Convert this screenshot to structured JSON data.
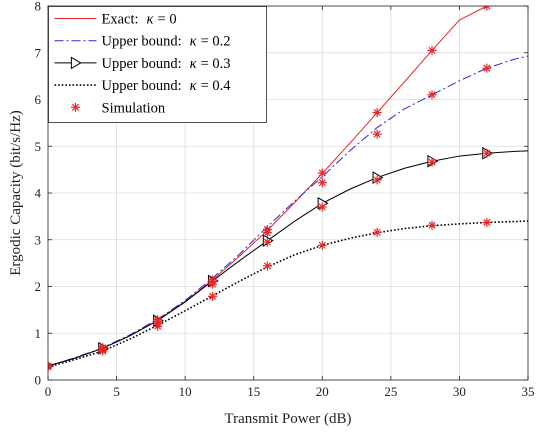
{
  "chart_data": {
    "type": "line",
    "xlabel": "Transmit Power  (dB)",
    "ylabel": "Ergodic Capacity (bit/s/Hz)",
    "xlim": [
      0,
      35
    ],
    "ylim": [
      0,
      8
    ],
    "xticks": [
      0,
      5,
      10,
      15,
      20,
      25,
      30,
      35
    ],
    "yticks": [
      0,
      1,
      2,
      3,
      4,
      5,
      6,
      7,
      8
    ],
    "grid": true,
    "legend_position": "top-left",
    "series": [
      {
        "name": "Exact:",
        "kappa_symbol": "κ",
        "kappa_value": "= 0",
        "color": "#e8262a",
        "style": "solid",
        "marker": "none",
        "x": [
          0,
          2,
          4,
          6,
          8,
          10,
          12,
          14,
          16,
          18,
          20,
          22,
          24,
          26,
          28,
          30,
          32
        ],
        "y": [
          0.3,
          0.47,
          0.68,
          0.95,
          1.28,
          1.68,
          2.14,
          2.66,
          3.2,
          3.8,
          4.42,
          5.06,
          5.72,
          6.38,
          7.05,
          7.7,
          8.0
        ]
      },
      {
        "name": "Upper bound:",
        "kappa_symbol": "κ",
        "kappa_value": "= 0.2",
        "color": "#2a2ad8",
        "style": "dashdot",
        "marker": "none",
        "x": [
          0,
          2,
          4,
          6,
          8,
          10,
          12,
          14,
          16,
          18,
          20,
          22,
          24,
          26,
          28,
          30,
          32,
          34,
          35
        ],
        "y": [
          0.3,
          0.48,
          0.69,
          0.97,
          1.3,
          1.7,
          2.18,
          2.7,
          3.28,
          3.83,
          4.35,
          4.9,
          5.4,
          5.8,
          6.1,
          6.4,
          6.67,
          6.86,
          6.93
        ]
      },
      {
        "name": "Upper bound:",
        "kappa_symbol": "κ",
        "kappa_value": "= 0.3",
        "color": "#000000",
        "style": "solid",
        "marker": "triangle-right",
        "marker_x": [
          0,
          4,
          8,
          12,
          16,
          20,
          24,
          28,
          32
        ],
        "x": [
          0,
          2,
          4,
          6,
          8,
          10,
          12,
          14,
          16,
          18,
          20,
          22,
          24,
          26,
          28,
          30,
          32,
          34,
          35
        ],
        "y": [
          0.3,
          0.47,
          0.68,
          0.95,
          1.27,
          1.67,
          2.12,
          2.56,
          2.98,
          3.4,
          3.78,
          4.08,
          4.33,
          4.53,
          4.68,
          4.79,
          4.85,
          4.89,
          4.9
        ]
      },
      {
        "name": "Upper bound:",
        "kappa_symbol": "κ",
        "kappa_value": "= 0.4",
        "color": "#000000",
        "style": "dotted",
        "marker": "none",
        "x": [
          0,
          2,
          4,
          6,
          8,
          10,
          12,
          14,
          16,
          18,
          20,
          22,
          24,
          26,
          28,
          30,
          32,
          34,
          35
        ],
        "y": [
          0.28,
          0.44,
          0.62,
          0.88,
          1.17,
          1.48,
          1.8,
          2.12,
          2.42,
          2.68,
          2.88,
          3.03,
          3.15,
          3.24,
          3.3,
          3.34,
          3.37,
          3.39,
          3.4
        ]
      },
      {
        "name": "Simulation",
        "color": "#e8262a",
        "style": "none",
        "marker": "asterisk",
        "x": [
          0,
          0,
          0,
          0,
          4,
          4,
          4,
          4,
          8,
          8,
          8,
          8,
          12,
          12,
          12,
          12,
          16,
          16,
          16,
          16,
          20,
          20,
          20,
          20,
          24,
          24,
          24,
          24,
          28,
          28,
          28,
          28,
          32,
          32,
          32,
          32
        ],
        "y": [
          0.3,
          0.3,
          0.3,
          0.28,
          0.69,
          0.67,
          0.65,
          0.62,
          1.29,
          1.25,
          1.2,
          1.15,
          2.14,
          2.1,
          2.05,
          1.79,
          3.22,
          3.15,
          2.95,
          2.44,
          4.43,
          4.22,
          3.7,
          2.88,
          5.72,
          5.26,
          4.28,
          3.16,
          7.05,
          6.1,
          4.66,
          3.31,
          8.0,
          6.67,
          4.85,
          3.37
        ]
      }
    ]
  }
}
